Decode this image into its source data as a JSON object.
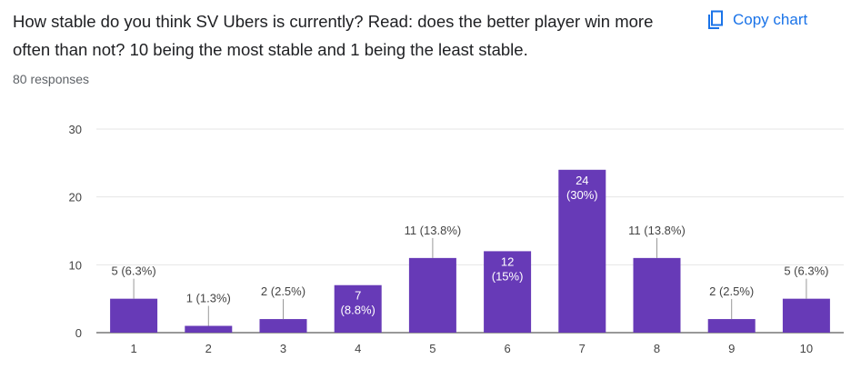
{
  "question": {
    "text": "How stable do you think SV Ubers is currently? Read: does the better player win more often than not? 10 being the most stable and 1 being the least stable.",
    "responses": "80 responses"
  },
  "copy_button": {
    "label": "Copy chart",
    "icon": "copy-icon",
    "color": "#1a73e8"
  },
  "chart_data": {
    "type": "bar",
    "categories": [
      "1",
      "2",
      "3",
      "4",
      "5",
      "6",
      "7",
      "8",
      "9",
      "10"
    ],
    "values": [
      5,
      1,
      2,
      7,
      11,
      12,
      24,
      11,
      2,
      5
    ],
    "data_labels": [
      "5 (6.3%)",
      "1 (1.3%)",
      "2 (2.5%)",
      "7 (8.8%)",
      "11 (13.8%)",
      "12 (15%)",
      "24 (30%)",
      "11 (13.8%)",
      "2 (2.5%)",
      "5 (6.3%)"
    ],
    "label_inside": [
      false,
      false,
      false,
      true,
      false,
      true,
      true,
      false,
      false,
      false
    ],
    "yticks": [
      0,
      10,
      20,
      30
    ],
    "ylim": [
      0,
      30
    ],
    "grid": true,
    "bar_color": "#673ab7"
  }
}
